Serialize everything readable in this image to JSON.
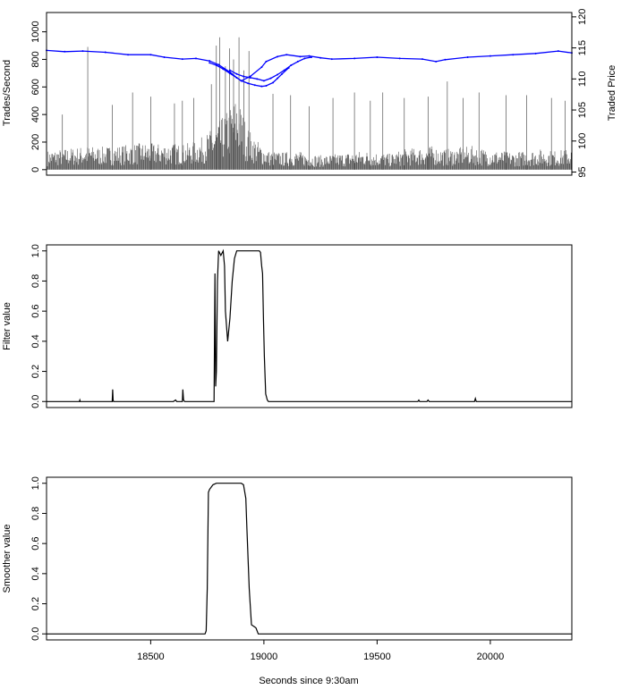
{
  "chart_data": [
    {
      "type": "bar",
      "panel": "top",
      "ylabel": "Trades/Second",
      "y2label": "Traded Price",
      "xlim": [
        18040,
        20360
      ],
      "ylim": [
        -40,
        1140
      ],
      "yticks": [
        0,
        200,
        400,
        600,
        800,
        1000
      ],
      "y2lim": [
        94.5,
        120.7
      ],
      "y2ticks": [
        95,
        100,
        105,
        110,
        115,
        120
      ],
      "series": [
        {
          "kind": "bars",
          "color": "#333333",
          "x": [
            18040,
            18100,
            18160,
            18220,
            18280,
            18340,
            18400,
            18460,
            18520,
            18580,
            18640,
            18700,
            18740,
            18770,
            18800,
            18830,
            18860,
            18880,
            18900,
            18920,
            18950,
            18980,
            19020,
            19080,
            19140,
            19200,
            19260,
            19320,
            19380,
            19440,
            19500,
            19560,
            19620,
            19680,
            19740,
            19800,
            19860,
            19920,
            19980,
            20040,
            20100,
            20160,
            20220,
            20280,
            20340
          ],
          "values": [
            120,
            130,
            140,
            150,
            145,
            150,
            160,
            170,
            165,
            170,
            160,
            180,
            220,
            260,
            300,
            360,
            420,
            480,
            400,
            300,
            220,
            170,
            120,
            110,
            120,
            100,
            90,
            100,
            110,
            120,
            110,
            100,
            130,
            140,
            150,
            130,
            140,
            150,
            130,
            120,
            110,
            120,
            130,
            120,
            130
          ]
        },
        {
          "kind": "spikes",
          "color": "#333333",
          "x": [
            18110,
            18222,
            18330,
            18420,
            18500,
            18605,
            18640,
            18690,
            18768,
            18790,
            18805,
            18830,
            18848,
            18866,
            18890,
            18912,
            18934,
            19040,
            19118,
            19200,
            19305,
            19400,
            19470,
            19525,
            19620,
            19725,
            19810,
            19880,
            19950,
            20070,
            20160,
            20270,
            20330
          ],
          "values": [
            400,
            890,
            470,
            560,
            530,
            480,
            500,
            520,
            620,
            900,
            960,
            750,
            880,
            800,
            960,
            720,
            860,
            550,
            540,
            460,
            520,
            560,
            500,
            560,
            520,
            530,
            640,
            520,
            560,
            540,
            540,
            520,
            500
          ]
        },
        {
          "kind": "price",
          "axis": "right",
          "color": "#0000ff",
          "x": [
            18040,
            18120,
            18200,
            18300,
            18400,
            18500,
            18560,
            18640,
            18700,
            18760,
            18800,
            18850,
            18880,
            18900,
            18940,
            18990,
            19010,
            19060,
            19100,
            19160,
            19200,
            19250,
            19300,
            19400,
            19500,
            19600,
            19700,
            19760,
            19800,
            19900,
            20000,
            20100,
            20200,
            20300,
            20360
          ],
          "values": [
            114.6,
            114.4,
            114.5,
            114.3,
            113.9,
            113.9,
            113.5,
            113.2,
            113.3,
            112.9,
            112.3,
            111.1,
            110.2,
            109.7,
            110.4,
            111.9,
            112.8,
            113.6,
            113.9,
            113.6,
            113.7,
            113.4,
            113.2,
            113.3,
            113.5,
            113.3,
            113.2,
            112.8,
            113.1,
            113.5,
            113.7,
            113.9,
            114.1,
            114.5,
            114.2
          ]
        },
        {
          "kind": "price",
          "axis": "right",
          "color": "#0000ff",
          "x": [
            18850,
            18880,
            18910,
            18940,
            18970,
            19000,
            19030,
            19060,
            19090,
            19120,
            19150,
            19180,
            19210
          ],
          "values": [
            111.4,
            110.8,
            110.4,
            110.2,
            110.0,
            109.7,
            110.1,
            110.7,
            111.4,
            112.2,
            112.8,
            113.3,
            113.5
          ]
        },
        {
          "kind": "price",
          "axis": "right",
          "color": "#0000ff",
          "x": [
            18760,
            18790,
            18820,
            18850,
            18880,
            18900,
            18930,
            18960,
            18990,
            19010,
            19040,
            19060,
            19080,
            19110
          ],
          "values": [
            112.6,
            112.2,
            111.6,
            110.9,
            110.2,
            109.7,
            109.3,
            109.0,
            108.8,
            108.9,
            109.4,
            110.1,
            110.8,
            111.8
          ]
        }
      ]
    },
    {
      "type": "line",
      "panel": "middle",
      "ylabel": "Filter value",
      "xlim": [
        18040,
        20360
      ],
      "ylim": [
        -0.04,
        1.04
      ],
      "yticks": [
        0.0,
        0.2,
        0.4,
        0.6,
        0.8,
        1.0
      ],
      "x": [
        18040,
        18185,
        18187,
        18189,
        18300,
        18330,
        18332,
        18334,
        18336,
        18600,
        18610,
        18615,
        18640,
        18642,
        18645,
        18650,
        18780,
        18784,
        18787,
        18790,
        18795,
        18800,
        18810,
        18820,
        18826,
        18830,
        18840,
        18850,
        18860,
        18870,
        18880,
        18890,
        18900,
        18940,
        18980,
        18985,
        18990,
        18994,
        18998,
        19002,
        19008,
        19015,
        19020,
        19680,
        19684,
        19688,
        19720,
        19725,
        19730,
        19930,
        19934,
        19938,
        20360
      ],
      "values": [
        0.0,
        0.0,
        0.01,
        0.0,
        0.0,
        0.0,
        0.08,
        0.01,
        0.0,
        0.0,
        0.01,
        0.0,
        0.0,
        0.08,
        0.01,
        0.0,
        0.0,
        0.85,
        0.1,
        0.2,
        0.8,
        1.0,
        0.97,
        1.0,
        0.9,
        0.6,
        0.4,
        0.55,
        0.8,
        0.95,
        1.0,
        1.0,
        1.0,
        1.0,
        1.0,
        0.99,
        0.9,
        0.85,
        0.55,
        0.3,
        0.05,
        0.01,
        0.0,
        0.0,
        0.01,
        0.0,
        0.0,
        0.01,
        0.0,
        0.0,
        0.02,
        0.0,
        0.0
      ]
    },
    {
      "type": "line",
      "panel": "bottom",
      "ylabel": "Smoother value",
      "xlabel": "Seconds since 9:30am",
      "xlim": [
        18040,
        20360
      ],
      "ylim": [
        -0.04,
        1.04
      ],
      "yticks": [
        0.0,
        0.2,
        0.4,
        0.6,
        0.8,
        1.0
      ],
      "xticks": [
        18500,
        19000,
        19500,
        20000
      ],
      "x": [
        18040,
        18740,
        18745,
        18750,
        18755,
        18760,
        18775,
        18790,
        18800,
        18890,
        18900,
        18910,
        18920,
        18925,
        18935,
        18945,
        18955,
        18965,
        18975,
        19000,
        20360
      ],
      "values": [
        0.0,
        0.0,
        0.02,
        0.3,
        0.94,
        0.96,
        0.99,
        1.0,
        1.0,
        1.0,
        1.0,
        0.99,
        0.9,
        0.7,
        0.3,
        0.06,
        0.05,
        0.04,
        0.0,
        0.0,
        0.0
      ]
    }
  ]
}
